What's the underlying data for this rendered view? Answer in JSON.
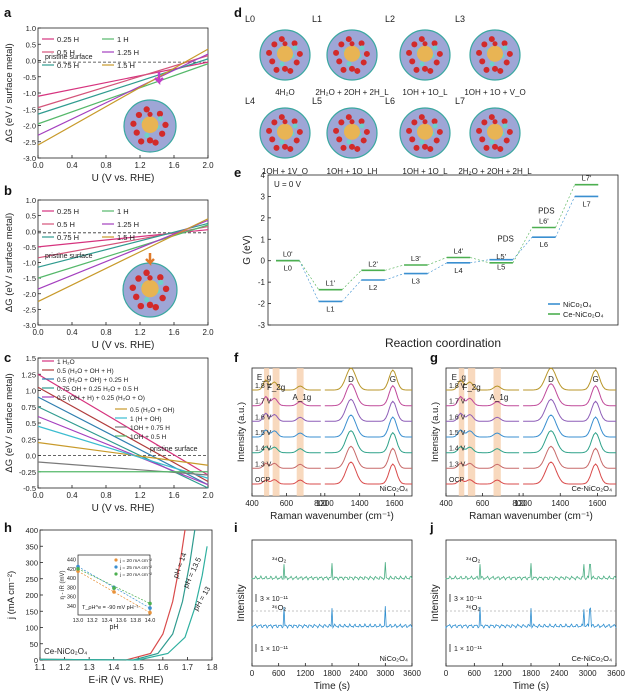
{
  "panels": {
    "a": "a",
    "b": "b",
    "c": "c",
    "d": "d",
    "e": "e",
    "f": "f",
    "g": "g",
    "h": "h",
    "i": "i",
    "j": "j"
  },
  "structures": {
    "labels": [
      "L0",
      "L1",
      "L2",
      "L3",
      "L4",
      "L5",
      "L6",
      "L7"
    ],
    "captions": [
      "4H₂O",
      "2H₂O + 2OH + 2H_L",
      "1OH + 1O_L",
      "1OH + 1O + V_O",
      "1OH + 1V_O",
      "1OH + 1O_LH",
      "1OH + 1O_L",
      "2H₂O + 2OH + 2H_L"
    ]
  },
  "chart_data": [
    {
      "panel": "a",
      "type": "line",
      "xlabel": "U (V vs. RHE)",
      "ylabel": "ΔG (eV / surface metal)",
      "xlim": [
        0.0,
        2.0
      ],
      "ylim": [
        -3.0,
        1.0
      ],
      "xticks": [
        "0.0",
        "0.4",
        "0.8",
        "1.2",
        "1.6",
        "2.0"
      ],
      "yticks": [
        "-3.0",
        "-2.5",
        "-2.0",
        "-1.5",
        "-1.0",
        "-0.5",
        "0.0",
        "0.5",
        "1.0"
      ],
      "reference_label": "pristine surface",
      "reference_y": -0.05,
      "legend_position": "top-left",
      "series": [
        {
          "name": "0.25 H",
          "color": "#d6337e",
          "y0": -1.1,
          "y2": -0.05
        },
        {
          "name": "0.5 H",
          "color": "#d4547a",
          "y0": -1.45,
          "y2": 0.15
        },
        {
          "name": "0.75 H",
          "color": "#2f9b8f",
          "y0": -1.65,
          "y2": 0.05
        },
        {
          "name": "1 H",
          "color": "#55b86a",
          "y0": -1.95,
          "y2": -0.1
        },
        {
          "name": "1.25 H",
          "color": "#a43fbf",
          "y0": -2.3,
          "y2": 0.2
        },
        {
          "name": "1.5 H",
          "color": "#c89a2a",
          "y0": -2.6,
          "y2": 0.35
        }
      ]
    },
    {
      "panel": "b",
      "type": "line",
      "xlabel": "U (V vs. RHE)",
      "ylabel": "ΔG (eV / surface metal)",
      "xlim": [
        0.0,
        2.0
      ],
      "ylim": [
        -3.0,
        1.0
      ],
      "xticks": [
        "0.0",
        "0.4",
        "0.8",
        "1.2",
        "1.6",
        "2.0"
      ],
      "yticks": [
        "-3.0",
        "-2.5",
        "-2.0",
        "-1.5",
        "-1.0",
        "-0.5",
        "0.0",
        "0.5",
        "1.0"
      ],
      "reference_label": "pristine surface",
      "reference_y": -0.05,
      "legend_position": "top-left",
      "series": [
        {
          "name": "0.25 H",
          "color": "#d6337e",
          "y0": -0.5,
          "y2": 0.05
        },
        {
          "name": "0.5 H",
          "color": "#d4547a",
          "y0": -0.85,
          "y2": 0.15
        },
        {
          "name": "0.75 H",
          "color": "#2f9b8f",
          "y0": -1.15,
          "y2": 0.25
        },
        {
          "name": "1 H",
          "color": "#55b86a",
          "y0": -1.5,
          "y2": 0.2
        },
        {
          "name": "1.25 H",
          "color": "#a43fbf",
          "y0": -1.85,
          "y2": 0.35
        },
        {
          "name": "1.5 H",
          "color": "#c89a2a",
          "y0": -2.25,
          "y2": 0.4
        }
      ]
    },
    {
      "panel": "c",
      "type": "line",
      "xlabel": "U (V vs. RHE)",
      "ylabel": "ΔG (eV / surface metal)",
      "xlim": [
        0.0,
        2.0
      ],
      "ylim": [
        -0.5,
        1.5
      ],
      "xticks": [
        "0.0",
        "0.4",
        "0.8",
        "1.2",
        "1.6",
        "2.0"
      ],
      "yticks": [
        "-0.5",
        "-0.25",
        "0.0",
        "0.25",
        "0.5",
        "0.75",
        "1.0",
        "1.25",
        "1.5"
      ],
      "reference_label": "pristine surface",
      "reference_y": 0.0,
      "series": [
        {
          "name": "1 H₂O",
          "color": "#d6337e",
          "y0": 1.25,
          "y2": -0.3
        },
        {
          "name": "0.5 (H₂O + OH + H)",
          "color": "#b03c3c",
          "y0": 1.05,
          "y2": -0.4
        },
        {
          "name": "0.5 (H₂O + OH) + 0.25 H",
          "color": "#2f7fb0",
          "y0": 0.9,
          "y2": -0.45
        },
        {
          "name": "0.75 OH + 0.25 H₂O + 0.5 H",
          "color": "#2f9b8f",
          "y0": 0.75,
          "y2": -0.5
        },
        {
          "name": "0.5 (OH + H) + 0.25 (H₂O + O)",
          "color": "#a43fbf",
          "y0": 0.6,
          "y2": -0.45
        },
        {
          "name": "0.5 (H₂O + OH)",
          "color": "#c89a2a",
          "y0": 0.2,
          "y2": -0.15
        },
        {
          "name": "1 (H + OH)",
          "color": "#3bbcd0",
          "y0": 0.45,
          "y2": -0.35
        },
        {
          "name": "1OH + 0.75 H",
          "color": "#7a7a7a",
          "y0": -0.1,
          "y2": -0.3
        },
        {
          "name": "1OH + 0.5 H",
          "color": "#55b86a",
          "y0": -0.25,
          "y2": -0.25
        }
      ]
    },
    {
      "panel": "e",
      "type": "line",
      "title": "U = 0 V",
      "xlabel": "Reaction coordination",
      "ylabel": "G (eV)",
      "ylim": [
        -3.0,
        4.0
      ],
      "yticks": [
        "-3",
        "-2",
        "-1",
        "0",
        "1",
        "2",
        "3",
        "4"
      ],
      "legend_position": "bottom-right",
      "annotations": [
        "PDS",
        "PDS"
      ],
      "categories": [
        "L0",
        "L1",
        "L2",
        "L3",
        "L4",
        "L5",
        "L6",
        "L7"
      ],
      "series": [
        {
          "name": "NiCo₂O₄",
          "color": "#3a8fd0",
          "values": [
            0.0,
            -1.9,
            -0.9,
            -0.6,
            -0.1,
            0.05,
            1.1,
            3.0
          ],
          "labels": [
            "L0",
            "L1",
            "L2",
            "L3",
            "L4",
            "L5",
            "L6",
            "L7"
          ]
        },
        {
          "name": "Ce-NiCo₂O₄",
          "color": "#4caf50",
          "values": [
            0.0,
            -1.35,
            -0.45,
            -0.2,
            0.15,
            -0.1,
            1.55,
            3.55
          ],
          "labels": [
            "L0'",
            "L1'",
            "L2'",
            "L3'",
            "L4'",
            "L5'",
            "L6'",
            "L7'"
          ]
        }
      ]
    },
    {
      "panel": "f",
      "type": "line",
      "sample": "NiCo₂O₄",
      "xlabel": "Raman wavenumber (cm⁻¹)",
      "ylabel": "Intensity (a.u.)",
      "xlim": [
        400,
        1700
      ],
      "xticks": [
        "400",
        "600",
        "800",
        "1200",
        "1400",
        "1600"
      ],
      "peaks": [
        "E_g",
        "F_2g",
        "A_1g",
        "D",
        "G"
      ],
      "potentials": [
        "1.8 V",
        "1.7 V",
        "1.6 V",
        "1.5 V",
        "1.4 V",
        "1.3 V",
        "OCP"
      ]
    },
    {
      "panel": "g",
      "type": "line",
      "sample": "Ce-NiCo₂O₄",
      "xlabel": "Raman wavenumber (cm⁻¹)",
      "ylabel": "Intensity (a.u.)",
      "xlim": [
        400,
        1700
      ],
      "xticks": [
        "400",
        "600",
        "800",
        "1200",
        "1400",
        "1600"
      ],
      "peaks": [
        "E_g",
        "F_2g",
        "A_1g",
        "D",
        "G"
      ],
      "potentials": [
        "1.8 V",
        "1.7 V",
        "1.6 V",
        "1.5 V",
        "1.4 V",
        "1.3 V",
        "OCP"
      ]
    },
    {
      "panel": "h",
      "type": "line",
      "sample": "Ce-NiCo₂O₄",
      "xlabel": "E-iR (V vs. RHE)",
      "ylabel": "j (mA cm⁻²)",
      "xlim": [
        1.1,
        1.8
      ],
      "ylim": [
        0,
        400
      ],
      "xticks": [
        "1.1",
        "1.2",
        "1.3",
        "1.4",
        "1.5",
        "1.6",
        "1.7",
        "1.8"
      ],
      "yticks": [
        "0",
        "50",
        "100",
        "150",
        "200",
        "250",
        "300",
        "350",
        "400"
      ],
      "series": [
        {
          "name": "pH = 14",
          "color": "#d94b4b",
          "x": [
            1.45,
            1.55,
            1.6,
            1.64,
            1.67,
            1.69
          ],
          "y": [
            0,
            20,
            80,
            180,
            300,
            400
          ]
        },
        {
          "name": "pH = 13.5",
          "color": "#2f9b8f",
          "x": [
            1.48,
            1.58,
            1.64,
            1.68,
            1.71,
            1.73
          ],
          "y": [
            0,
            20,
            80,
            180,
            300,
            400
          ]
        },
        {
          "name": "pH = 13",
          "color": "#2fb0a0",
          "x": [
            1.5,
            1.62,
            1.69,
            1.73,
            1.76,
            1.78
          ],
          "y": [
            0,
            20,
            70,
            160,
            260,
            350
          ]
        }
      ],
      "inset": {
        "xlabel": "pH",
        "ylabel": "η - iR (mV)",
        "xlim": [
          13.0,
          14.0
        ],
        "ylim": [
          320,
          450
        ],
        "xticks": [
          "13.0",
          "13.2",
          "13.4",
          "13.6",
          "13.8",
          "14.0"
        ],
        "yticks": [
          "340",
          "360",
          "380",
          "400",
          "420",
          "440"
        ],
        "annotation": "T_ρH^e = -90 mV pH⁻¹",
        "series": [
          {
            "name": "j = 20 mA cm⁻²",
            "color": "#e8923a",
            "x": [
              13.0,
              13.5,
              14.0
            ],
            "y": [
              415,
              370,
              325
            ]
          },
          {
            "name": "j = 25 mA cm⁻²",
            "color": "#3a8fd0",
            "x": [
              13.0,
              13.5,
              14.0
            ],
            "y": [
              425,
              380,
              335
            ]
          },
          {
            "name": "j = 20 mA cm⁻²",
            "color": "#4caf50",
            "x": [
              13.0,
              13.5,
              14.0
            ],
            "y": [
              420,
              378,
              345
            ]
          }
        ]
      }
    },
    {
      "panel": "i",
      "type": "line",
      "sample": "NiCo₂O₄",
      "xlabel": "Time (s)",
      "ylabel": "Intensity",
      "xlim": [
        0,
        3600
      ],
      "xticks": [
        "0",
        "600",
        "1200",
        "1800",
        "2400",
        "3000",
        "3600"
      ],
      "scale_bars": [
        "3 × 10⁻¹¹",
        "1 × 10⁻¹¹"
      ],
      "series": [
        {
          "name": "³⁴O₂",
          "color": "#4caf84",
          "spikes": [
            720,
            1800,
            3000
          ]
        },
        {
          "name": "³⁶O₂",
          "color": "#2f8fd0",
          "spikes": [
            720,
            1800,
            3000
          ]
        }
      ]
    },
    {
      "panel": "j",
      "type": "line",
      "sample": "Ce-NiCo₂O₄",
      "xlabel": "Time (s)",
      "ylabel": "Intensity",
      "xlim": [
        0,
        3600
      ],
      "xticks": [
        "0",
        "600",
        "1200",
        "1800",
        "2400",
        "3000",
        "3600"
      ],
      "scale_bars": [
        "3 × 10⁻¹¹",
        "1 × 10⁻¹¹"
      ],
      "series": [
        {
          "name": "³⁴O₂",
          "color": "#4caf84",
          "spikes": [
            720,
            1800,
            2920,
            3050
          ]
        },
        {
          "name": "³⁶O₂",
          "color": "#2f8fd0",
          "spikes": [
            720,
            1800,
            2920,
            3050
          ]
        }
      ]
    }
  ]
}
